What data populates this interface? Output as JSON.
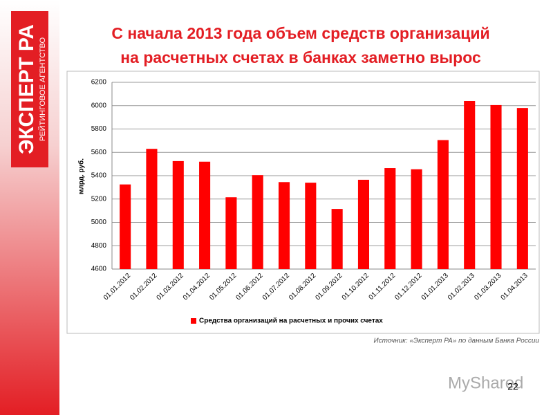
{
  "logo": {
    "name": "ЭКСПЕРТ РА",
    "tagline": "РЕЙТИНГОВОЕ АГЕНТСТВО"
  },
  "slide_title": [
    "С начала 2013 года объем средств организаций",
    "на расчетных счетах в банках заметно вырос"
  ],
  "chart_data": {
    "type": "bar",
    "y_label": "млрд. руб.",
    "categories": [
      "01.01.2012",
      "01.02.2012",
      "01.03.2012",
      "01.04.2012",
      "01.05.2012",
      "01.06.2012",
      "01.07.2012",
      "01.08.2012",
      "01.09.2012",
      "01.10.2012",
      "01.11.2012",
      "01.12.2012",
      "01.01.2013",
      "01.02.2013",
      "01.03.2013",
      "01.04.2013"
    ],
    "series": [
      {
        "name": "Средства организаций на расчетных и прочих счетах",
        "color": "#ff0000",
        "values": [
          5325,
          5630,
          5525,
          5520,
          5215,
          5405,
          5345,
          5340,
          5115,
          5365,
          5465,
          5455,
          5705,
          6040,
          6005,
          5980
        ]
      }
    ],
    "ylim": [
      4600,
      6200
    ],
    "yticks": [
      4600,
      4800,
      5000,
      5200,
      5400,
      5600,
      5800,
      6000,
      6200
    ],
    "grid": true,
    "legend": "bottom"
  },
  "source": "Источник: «Эксперт РА» по данным Банка России",
  "watermark": "MyShared",
  "page_number": "22"
}
